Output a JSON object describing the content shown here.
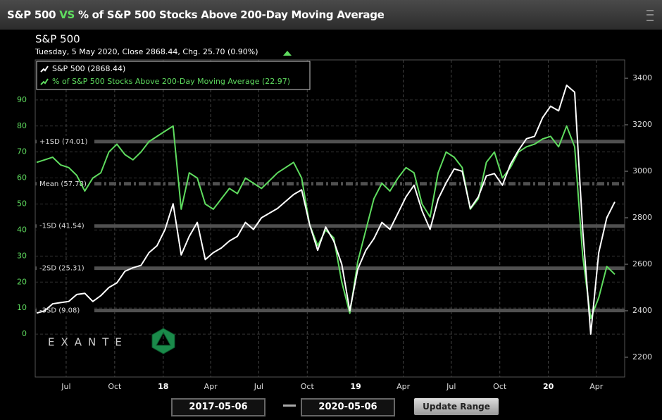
{
  "header": {
    "title_left": "S&P 500",
    "vs": "VS",
    "title_right": "% of S&P 500 Stocks Above 200-Day Moving Average"
  },
  "chart_data": {
    "type": "line",
    "title": "S&P 500",
    "subtitle": "Tuesday, 5 May 2020, Close 2868.44, Chg. 25.70 (0.90%)",
    "xlim": [
      "2017-05-06",
      "2020-05-06"
    ],
    "xticks": [
      {
        "value": "2017-07",
        "label": "Jul"
      },
      {
        "value": "2017-10",
        "label": "Oct"
      },
      {
        "value": "2018-01",
        "label": "18"
      },
      {
        "value": "2018-04",
        "label": "Apr"
      },
      {
        "value": "2018-07",
        "label": "Jul"
      },
      {
        "value": "2018-10",
        "label": "Oct"
      },
      {
        "value": "2019-01",
        "label": "19"
      },
      {
        "value": "2019-04",
        "label": "Apr"
      },
      {
        "value": "2019-07",
        "label": "Jul"
      },
      {
        "value": "2019-10",
        "label": "Oct"
      },
      {
        "value": "2020-01",
        "label": "20"
      },
      {
        "value": "2020-04",
        "label": "Apr"
      }
    ],
    "ylim": [
      -16.5,
      105.4
    ],
    "yticks": [
      0,
      10,
      20,
      30,
      40,
      50,
      60,
      70,
      80,
      90
    ],
    "y2lim": [
      2115,
      3479
    ],
    "y2ticks": [
      2200,
      2400,
      2600,
      2800,
      3000,
      3200,
      3400
    ],
    "grid": true,
    "series": [
      {
        "name": "S&P 500 (2868.44)",
        "color": "#ffffff",
        "axis": "y2",
        "values": [
          2390,
          2400,
          2430,
          2435,
          2440,
          2470,
          2475,
          2440,
          2465,
          2500,
          2520,
          2570,
          2585,
          2595,
          2650,
          2680,
          2750,
          2860,
          2640,
          2720,
          2780,
          2620,
          2650,
          2670,
          2700,
          2720,
          2780,
          2750,
          2800,
          2820,
          2840,
          2870,
          2900,
          2920,
          2770,
          2660,
          2760,
          2700,
          2600,
          2400,
          2580,
          2660,
          2710,
          2780,
          2750,
          2820,
          2890,
          2940,
          2830,
          2750,
          2880,
          2950,
          3010,
          3000,
          2840,
          2890,
          2980,
          2990,
          2940,
          3030,
          3090,
          3140,
          3150,
          3230,
          3280,
          3260,
          3370,
          3340,
          2750,
          2300,
          2650,
          2800,
          2868.44
        ]
      },
      {
        "name": "% of S&P 500 Stocks Above 200-Day Moving Average (22.97)",
        "color": "#5fdc5f",
        "values": [
          66,
          67,
          68,
          65,
          64,
          61,
          55,
          60,
          62,
          70,
          73,
          69,
          67,
          70,
          74,
          76,
          78,
          80,
          48,
          62,
          60,
          50,
          48,
          52,
          56,
          54,
          60,
          58,
          56,
          59,
          62,
          64,
          66,
          60,
          42,
          34,
          40,
          37,
          20,
          8,
          28,
          40,
          52,
          58,
          55,
          60,
          64,
          62,
          50,
          45,
          62,
          70,
          68,
          64,
          48,
          52,
          66,
          70,
          60,
          64,
          70,
          72,
          73,
          75,
          76,
          72,
          80,
          72,
          30,
          6,
          14,
          26,
          22.97
        ]
      }
    ],
    "levels": [
      {
        "label": "+1SD (74.01)",
        "value": 74.01
      },
      {
        "label": "Mean (57.78)",
        "value": 57.78
      },
      {
        "label": "-1SD (41.54)",
        "value": 41.54
      },
      {
        "label": "-2SD (25.31)",
        "value": 25.31
      },
      {
        "label": "-3SD (9.08)",
        "value": 9.08
      }
    ],
    "watermark": "EXANTE"
  },
  "range": {
    "start": "2017-05-06",
    "end": "2020-05-06",
    "button": "Update Range"
  }
}
